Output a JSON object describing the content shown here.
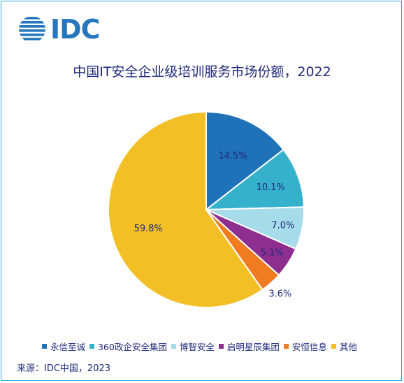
{
  "logo": {
    "text": "IDC"
  },
  "colors": {
    "border": "#2aa7d6",
    "text": "#1f2a7a",
    "logo": "#2677bd"
  },
  "source": "来源：IDC中国，2023",
  "chart_data": {
    "type": "pie",
    "title": "中国IT安全企业级培训服务市场份额，2022",
    "legend_position": "bottom",
    "slices": [
      {
        "name": "永信至诚",
        "value": 14.5,
        "label": "14.5%",
        "color": "#1f72b8"
      },
      {
        "name": "360政企安全集团",
        "value": 10.1,
        "label": "10.1%",
        "color": "#36b1cc"
      },
      {
        "name": "博智安全",
        "value": 7.0,
        "label": "7.0%",
        "color": "#a6dbe9"
      },
      {
        "name": "启明星辰集团",
        "value": 5.1,
        "label": "5.1%",
        "color": "#8e2f8f"
      },
      {
        "name": "安恒信息",
        "value": 3.6,
        "label": "3.6%",
        "color": "#f07c22"
      },
      {
        "name": "其他",
        "value": 59.8,
        "label": "59.8%",
        "color": "#f2bf26"
      }
    ]
  }
}
